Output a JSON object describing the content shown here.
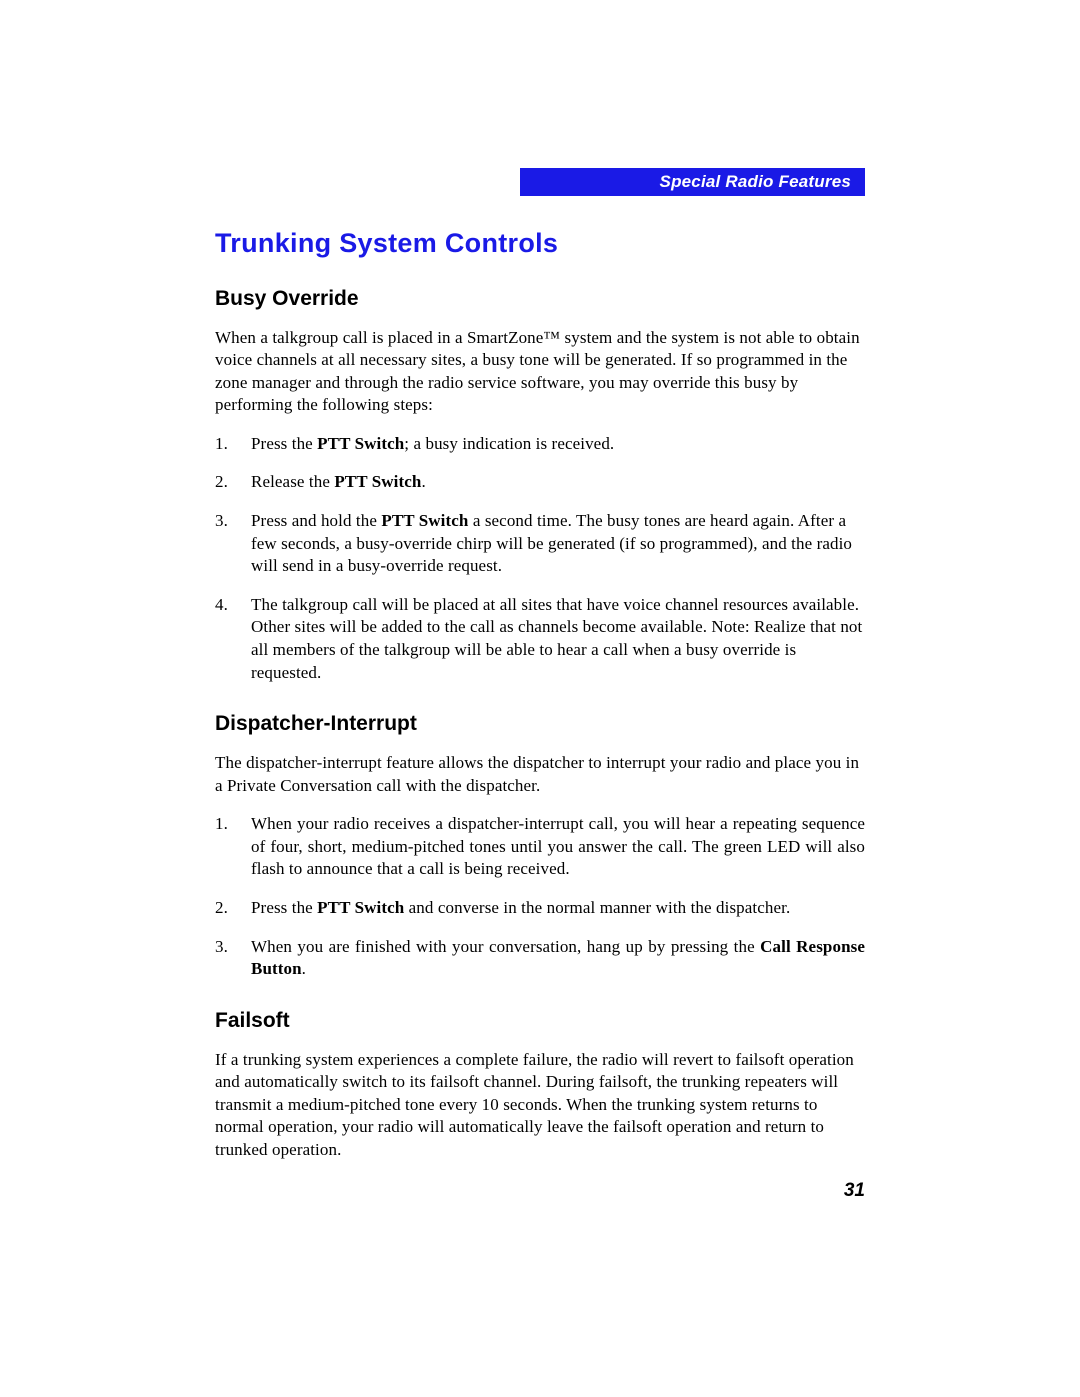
{
  "header": {
    "section_label": "Special Radio Features"
  },
  "title": "Trunking System Controls",
  "sections": {
    "busy": {
      "heading": "Busy Override",
      "intro": "When a talkgroup call is placed in a SmartZone™ system and the system is not able to obtain voice channels at all necessary sites, a busy tone will be generated. If so programmed in the zone manager and through the radio service software, you may override this busy by performing the following steps:",
      "s1_a": "Press the ",
      "s1_b": "PTT Switch",
      "s1_c": "; a busy indication is received.",
      "s2_a": "Release the ",
      "s2_b": "PTT Switch",
      "s2_c": ".",
      "s3_a": "Press and hold the ",
      "s3_b": "PTT Switch",
      "s3_c": " a second time. The busy tones are heard again. After a few seconds, a busy-override chirp will be generated (if so programmed), and the radio will send in a busy-override request.",
      "s4": "The talkgroup call will be placed at all sites that have voice channel resources available. Other sites will be added to the call as channels become available. Note: Realize that not all members of the talkgroup will be able to hear a call when a busy override is requested."
    },
    "disp": {
      "heading": "Dispatcher-Interrupt",
      "intro": "The dispatcher-interrupt feature allows the dispatcher to interrupt your radio and place you in a Private Conversation call with the dispatcher.",
      "s1": "When your radio receives a dispatcher-interrupt call, you will hear a repeating sequence of four, short, medium-pitched tones until you answer the call. The green LED will also flash to announce that a call is being received.",
      "s2_a": "Press the ",
      "s2_b": "PTT Switch",
      "s2_c": " and converse in the normal manner with the dispatcher.",
      "s3_a": "When you are finished with your conversation, hang up by pressing the ",
      "s3_b": "Call Response Button",
      "s3_c": "."
    },
    "fail": {
      "heading": "Failsoft",
      "para": "If a trunking system experiences a complete failure, the radio will revert to failsoft operation and automatically switch to its failsoft channel. During failsoft, the trunking repeaters will transmit a medium-pitched tone every 10 seconds. When the trunking system returns to normal operation, your radio will automatically leave the failsoft operation and return to trunked operation."
    }
  },
  "page_number": "31",
  "colors": {
    "accent": "#1a1ae6",
    "text": "#000000",
    "bg": "#ffffff"
  }
}
